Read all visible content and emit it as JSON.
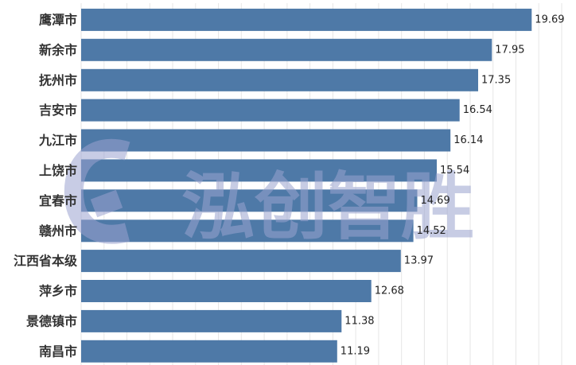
{
  "chart_data": {
    "type": "bar",
    "orientation": "horizontal",
    "categories": [
      "鹰潭市",
      "新余市",
      "抚州市",
      "吉安市",
      "九江市",
      "上饶市",
      "宜春市",
      "赣州市",
      "江西省本级",
      "萍乡市",
      "景德镇市",
      "南昌市"
    ],
    "values": [
      19.69,
      17.95,
      17.35,
      16.54,
      16.14,
      15.54,
      14.69,
      14.52,
      13.97,
      12.68,
      11.38,
      11.19
    ],
    "value_labels": [
      "19.69",
      "17.95",
      "17.35",
      "16.54",
      "16.14",
      "15.54",
      "14.69",
      "14.52",
      "13.97",
      "12.68",
      "11.38",
      "11.19"
    ],
    "xlim": [
      0,
      21
    ],
    "grid": true,
    "bar_color": "#4e79a7",
    "grid_color": "#e6e6e6"
  },
  "watermark": {
    "text": "泓创智胜"
  }
}
